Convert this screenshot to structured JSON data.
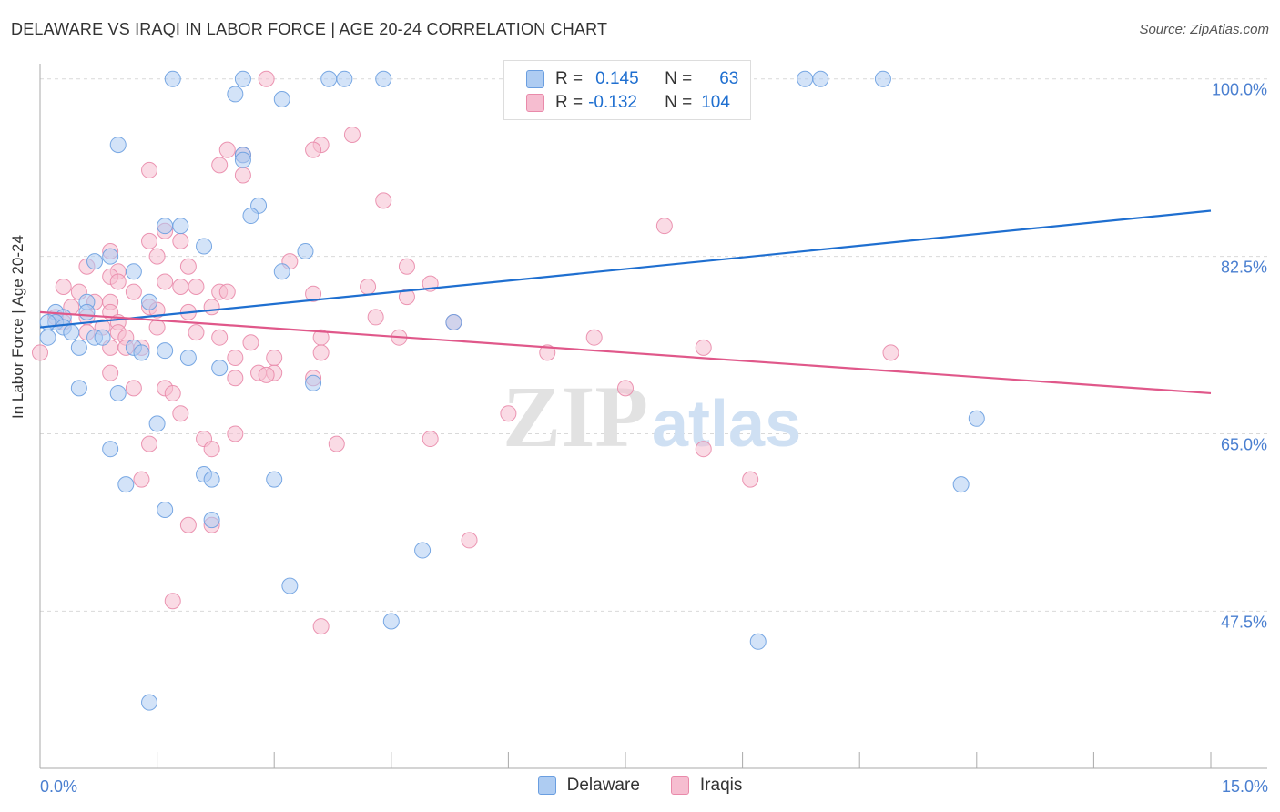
{
  "title": "DELAWARE VS IRAQI IN LABOR FORCE | AGE 20-24 CORRELATION CHART",
  "source": "Source: ZipAtlas.com",
  "watermark": {
    "zip": "ZIP",
    "atlas": "atlas"
  },
  "legend": {
    "rows": [
      {
        "r_label": "R =",
        "r_value": "0.145",
        "n_label": "N =",
        "n_value": "63"
      },
      {
        "r_label": "R =",
        "r_value": "-0.132",
        "n_label": "N =",
        "n_value": "104"
      }
    ]
  },
  "colors": {
    "delaware_fill": "#aeccf2",
    "delaware_stroke": "#6a9ee0",
    "delaware_line": "#1f6fd0",
    "iraqis_fill": "#f6bdd0",
    "iraqis_stroke": "#e98aaa",
    "iraqis_line": "#e0588a",
    "tick_label": "#4a7fd0",
    "grid": "#d9d9d9"
  },
  "chart_data": {
    "type": "scatter",
    "title": "DELAWARE VS IRAQI IN LABOR FORCE | AGE 20-24 CORRELATION CHART",
    "xlabel": "",
    "ylabel": "In Labor Force | Age 20-24",
    "xlim": [
      0,
      15
    ],
    "ylim": [
      32,
      101.5
    ],
    "x_tick_labels": [
      "0.0%",
      "15.0%"
    ],
    "y_ticks": [
      47.5,
      65.0,
      82.5,
      100.0
    ],
    "y_tick_labels": [
      "47.5%",
      "65.0%",
      "82.5%",
      "100.0%"
    ],
    "grid": true,
    "legend_position": "top-center",
    "series": [
      {
        "name": "Delaware",
        "r": 0.145,
        "n": 63,
        "trend": {
          "x": [
            0,
            15
          ],
          "y": [
            75.5,
            87.0
          ]
        },
        "points": [
          [
            1.7,
            100.0
          ],
          [
            2.6,
            100.0
          ],
          [
            3.7,
            100.0
          ],
          [
            3.9,
            100.0
          ],
          [
            4.4,
            100.0
          ],
          [
            9.8,
            100.0
          ],
          [
            10.0,
            100.0
          ],
          [
            10.8,
            100.0
          ],
          [
            2.5,
            98.5
          ],
          [
            3.1,
            98.0
          ],
          [
            1.0,
            93.5
          ],
          [
            2.6,
            92.5
          ],
          [
            2.6,
            92.0
          ],
          [
            2.8,
            87.5
          ],
          [
            2.7,
            86.5
          ],
          [
            1.6,
            85.5
          ],
          [
            1.8,
            85.5
          ],
          [
            2.1,
            83.5
          ],
          [
            3.4,
            83.0
          ],
          [
            0.9,
            82.5
          ],
          [
            0.7,
            82.0
          ],
          [
            1.2,
            81.0
          ],
          [
            3.1,
            81.0
          ],
          [
            0.6,
            78.0
          ],
          [
            1.4,
            78.0
          ],
          [
            0.2,
            77.0
          ],
          [
            0.6,
            77.0
          ],
          [
            0.3,
            76.5
          ],
          [
            0.2,
            76.0
          ],
          [
            0.1,
            76.0
          ],
          [
            0.3,
            75.5
          ],
          [
            0.4,
            75.0
          ],
          [
            5.3,
            76.0
          ],
          [
            0.7,
            74.5
          ],
          [
            0.8,
            74.5
          ],
          [
            1.2,
            73.5
          ],
          [
            0.5,
            73.5
          ],
          [
            1.3,
            73.0
          ],
          [
            1.6,
            73.2
          ],
          [
            1.9,
            72.5
          ],
          [
            2.3,
            71.5
          ],
          [
            3.5,
            70.0
          ],
          [
            0.5,
            69.5
          ],
          [
            1.0,
            69.0
          ],
          [
            12.0,
            66.5
          ],
          [
            1.5,
            66.0
          ],
          [
            0.9,
            63.5
          ],
          [
            2.1,
            61.0
          ],
          [
            2.2,
            60.5
          ],
          [
            3.0,
            60.5
          ],
          [
            1.1,
            60.0
          ],
          [
            11.8,
            60.0
          ],
          [
            1.6,
            57.5
          ],
          [
            2.2,
            56.5
          ],
          [
            4.9,
            53.5
          ],
          [
            3.2,
            50.0
          ],
          [
            4.5,
            46.5
          ],
          [
            9.2,
            44.5
          ],
          [
            1.4,
            38.5
          ],
          [
            0.1,
            74.5
          ]
        ]
      },
      {
        "name": "Iraqis",
        "r": -0.132,
        "n": 104,
        "trend": {
          "x": [
            0,
            15
          ],
          "y": [
            77.0,
            69.0
          ]
        },
        "points": [
          [
            2.9,
            100.0
          ],
          [
            4.0,
            94.5
          ],
          [
            3.6,
            93.5
          ],
          [
            3.5,
            93.0
          ],
          [
            2.4,
            93.0
          ],
          [
            2.6,
            92.5
          ],
          [
            2.3,
            91.5
          ],
          [
            1.4,
            91.0
          ],
          [
            2.6,
            90.5
          ],
          [
            4.4,
            88.0
          ],
          [
            8.0,
            85.5
          ],
          [
            1.6,
            85.0
          ],
          [
            1.4,
            84.0
          ],
          [
            1.8,
            84.0
          ],
          [
            0.9,
            83.0
          ],
          [
            1.5,
            82.5
          ],
          [
            3.2,
            82.0
          ],
          [
            4.7,
            81.5
          ],
          [
            0.6,
            81.5
          ],
          [
            1.9,
            81.5
          ],
          [
            1.0,
            81.0
          ],
          [
            0.9,
            80.5
          ],
          [
            1.6,
            80.0
          ],
          [
            1.0,
            80.0
          ],
          [
            1.8,
            79.5
          ],
          [
            2.0,
            79.5
          ],
          [
            5.0,
            79.8
          ],
          [
            0.3,
            79.5
          ],
          [
            0.5,
            79.0
          ],
          [
            4.2,
            79.5
          ],
          [
            2.3,
            79.0
          ],
          [
            2.4,
            79.0
          ],
          [
            1.2,
            79.0
          ],
          [
            3.5,
            78.8
          ],
          [
            4.7,
            78.5
          ],
          [
            0.7,
            78.0
          ],
          [
            0.9,
            78.0
          ],
          [
            0.4,
            77.5
          ],
          [
            1.4,
            77.5
          ],
          [
            0.9,
            77.0
          ],
          [
            1.9,
            77.0
          ],
          [
            2.2,
            77.5
          ],
          [
            0.6,
            76.5
          ],
          [
            0.2,
            76.5
          ],
          [
            0.3,
            76.0
          ],
          [
            4.3,
            76.5
          ],
          [
            5.3,
            76.0
          ],
          [
            1.0,
            76.0
          ],
          [
            1.0,
            75.0
          ],
          [
            1.5,
            75.5
          ],
          [
            0.6,
            75.0
          ],
          [
            1.1,
            74.5
          ],
          [
            2.0,
            75.0
          ],
          [
            2.3,
            74.5
          ],
          [
            3.6,
            74.5
          ],
          [
            4.6,
            74.5
          ],
          [
            7.1,
            74.5
          ],
          [
            0.9,
            73.5
          ],
          [
            1.1,
            73.5
          ],
          [
            2.7,
            74.0
          ],
          [
            3.6,
            73.0
          ],
          [
            6.5,
            73.0
          ],
          [
            8.5,
            73.5
          ],
          [
            10.9,
            73.0
          ],
          [
            0.0,
            73.0
          ],
          [
            2.5,
            72.5
          ],
          [
            3.0,
            72.5
          ],
          [
            2.8,
            71.0
          ],
          [
            2.5,
            70.5
          ],
          [
            3.5,
            70.5
          ],
          [
            3.0,
            71.0
          ],
          [
            0.9,
            71.0
          ],
          [
            1.2,
            69.5
          ],
          [
            1.6,
            69.5
          ],
          [
            1.7,
            69.0
          ],
          [
            7.5,
            69.5
          ],
          [
            1.8,
            67.0
          ],
          [
            6.0,
            67.0
          ],
          [
            2.1,
            64.5
          ],
          [
            2.5,
            65.0
          ],
          [
            5.0,
            64.5
          ],
          [
            2.2,
            63.5
          ],
          [
            1.4,
            64.0
          ],
          [
            3.8,
            64.0
          ],
          [
            8.5,
            63.5
          ],
          [
            1.3,
            60.5
          ],
          [
            9.1,
            60.5
          ],
          [
            1.9,
            56.0
          ],
          [
            2.2,
            56.0
          ],
          [
            5.5,
            54.5
          ],
          [
            1.7,
            48.5
          ],
          [
            3.6,
            46.0
          ],
          [
            1.3,
            73.5
          ],
          [
            0.8,
            75.5
          ],
          [
            2.9,
            70.8
          ],
          [
            1.5,
            77.2
          ]
        ]
      }
    ]
  }
}
